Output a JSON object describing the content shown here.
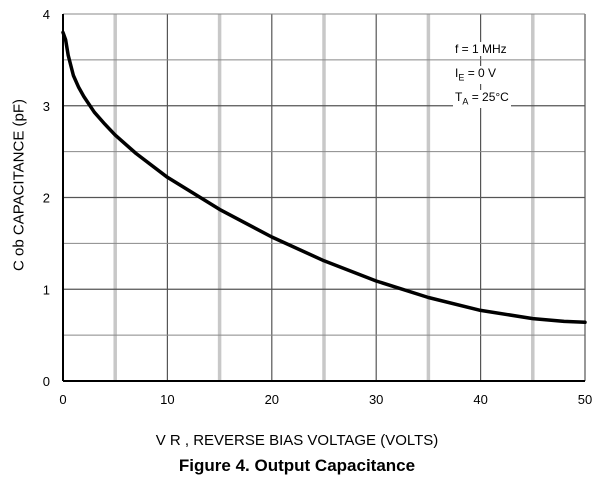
{
  "figure_title": "Figure 4. Output Capacitance",
  "conditions": {
    "freq": "f = 1 MHz",
    "ie_main": "I",
    "ie_sub": "E",
    "ie_rest": " = 0 V",
    "ta_main": "T",
    "ta_sub": "A",
    "ta_rest": " = 25°C"
  },
  "chart_data": {
    "type": "line",
    "title": "Figure 4. Output Capacitance",
    "xlabel": "V R , REVERSE BIAS VOLTAGE (VOLTS)",
    "ylabel": "C ob CAPACITANCE (pF)",
    "xlim": [
      0,
      50
    ],
    "ylim": [
      0,
      4
    ],
    "x_ticks": [
      0,
      10,
      20,
      30,
      40,
      50
    ],
    "y_ticks": [
      0,
      1,
      2,
      3,
      4
    ],
    "grid": true,
    "series": [
      {
        "x": [
          0,
          0.25,
          0.5,
          1,
          1.5,
          2,
          3,
          4,
          5,
          7,
          10,
          15,
          20,
          25,
          30,
          35,
          40,
          45,
          48,
          50
        ],
        "y": [
          3.8,
          3.72,
          3.55,
          3.33,
          3.2,
          3.1,
          2.93,
          2.8,
          2.68,
          2.48,
          2.22,
          1.87,
          1.57,
          1.31,
          1.09,
          0.91,
          0.77,
          0.68,
          0.65,
          0.64
        ]
      }
    ]
  }
}
